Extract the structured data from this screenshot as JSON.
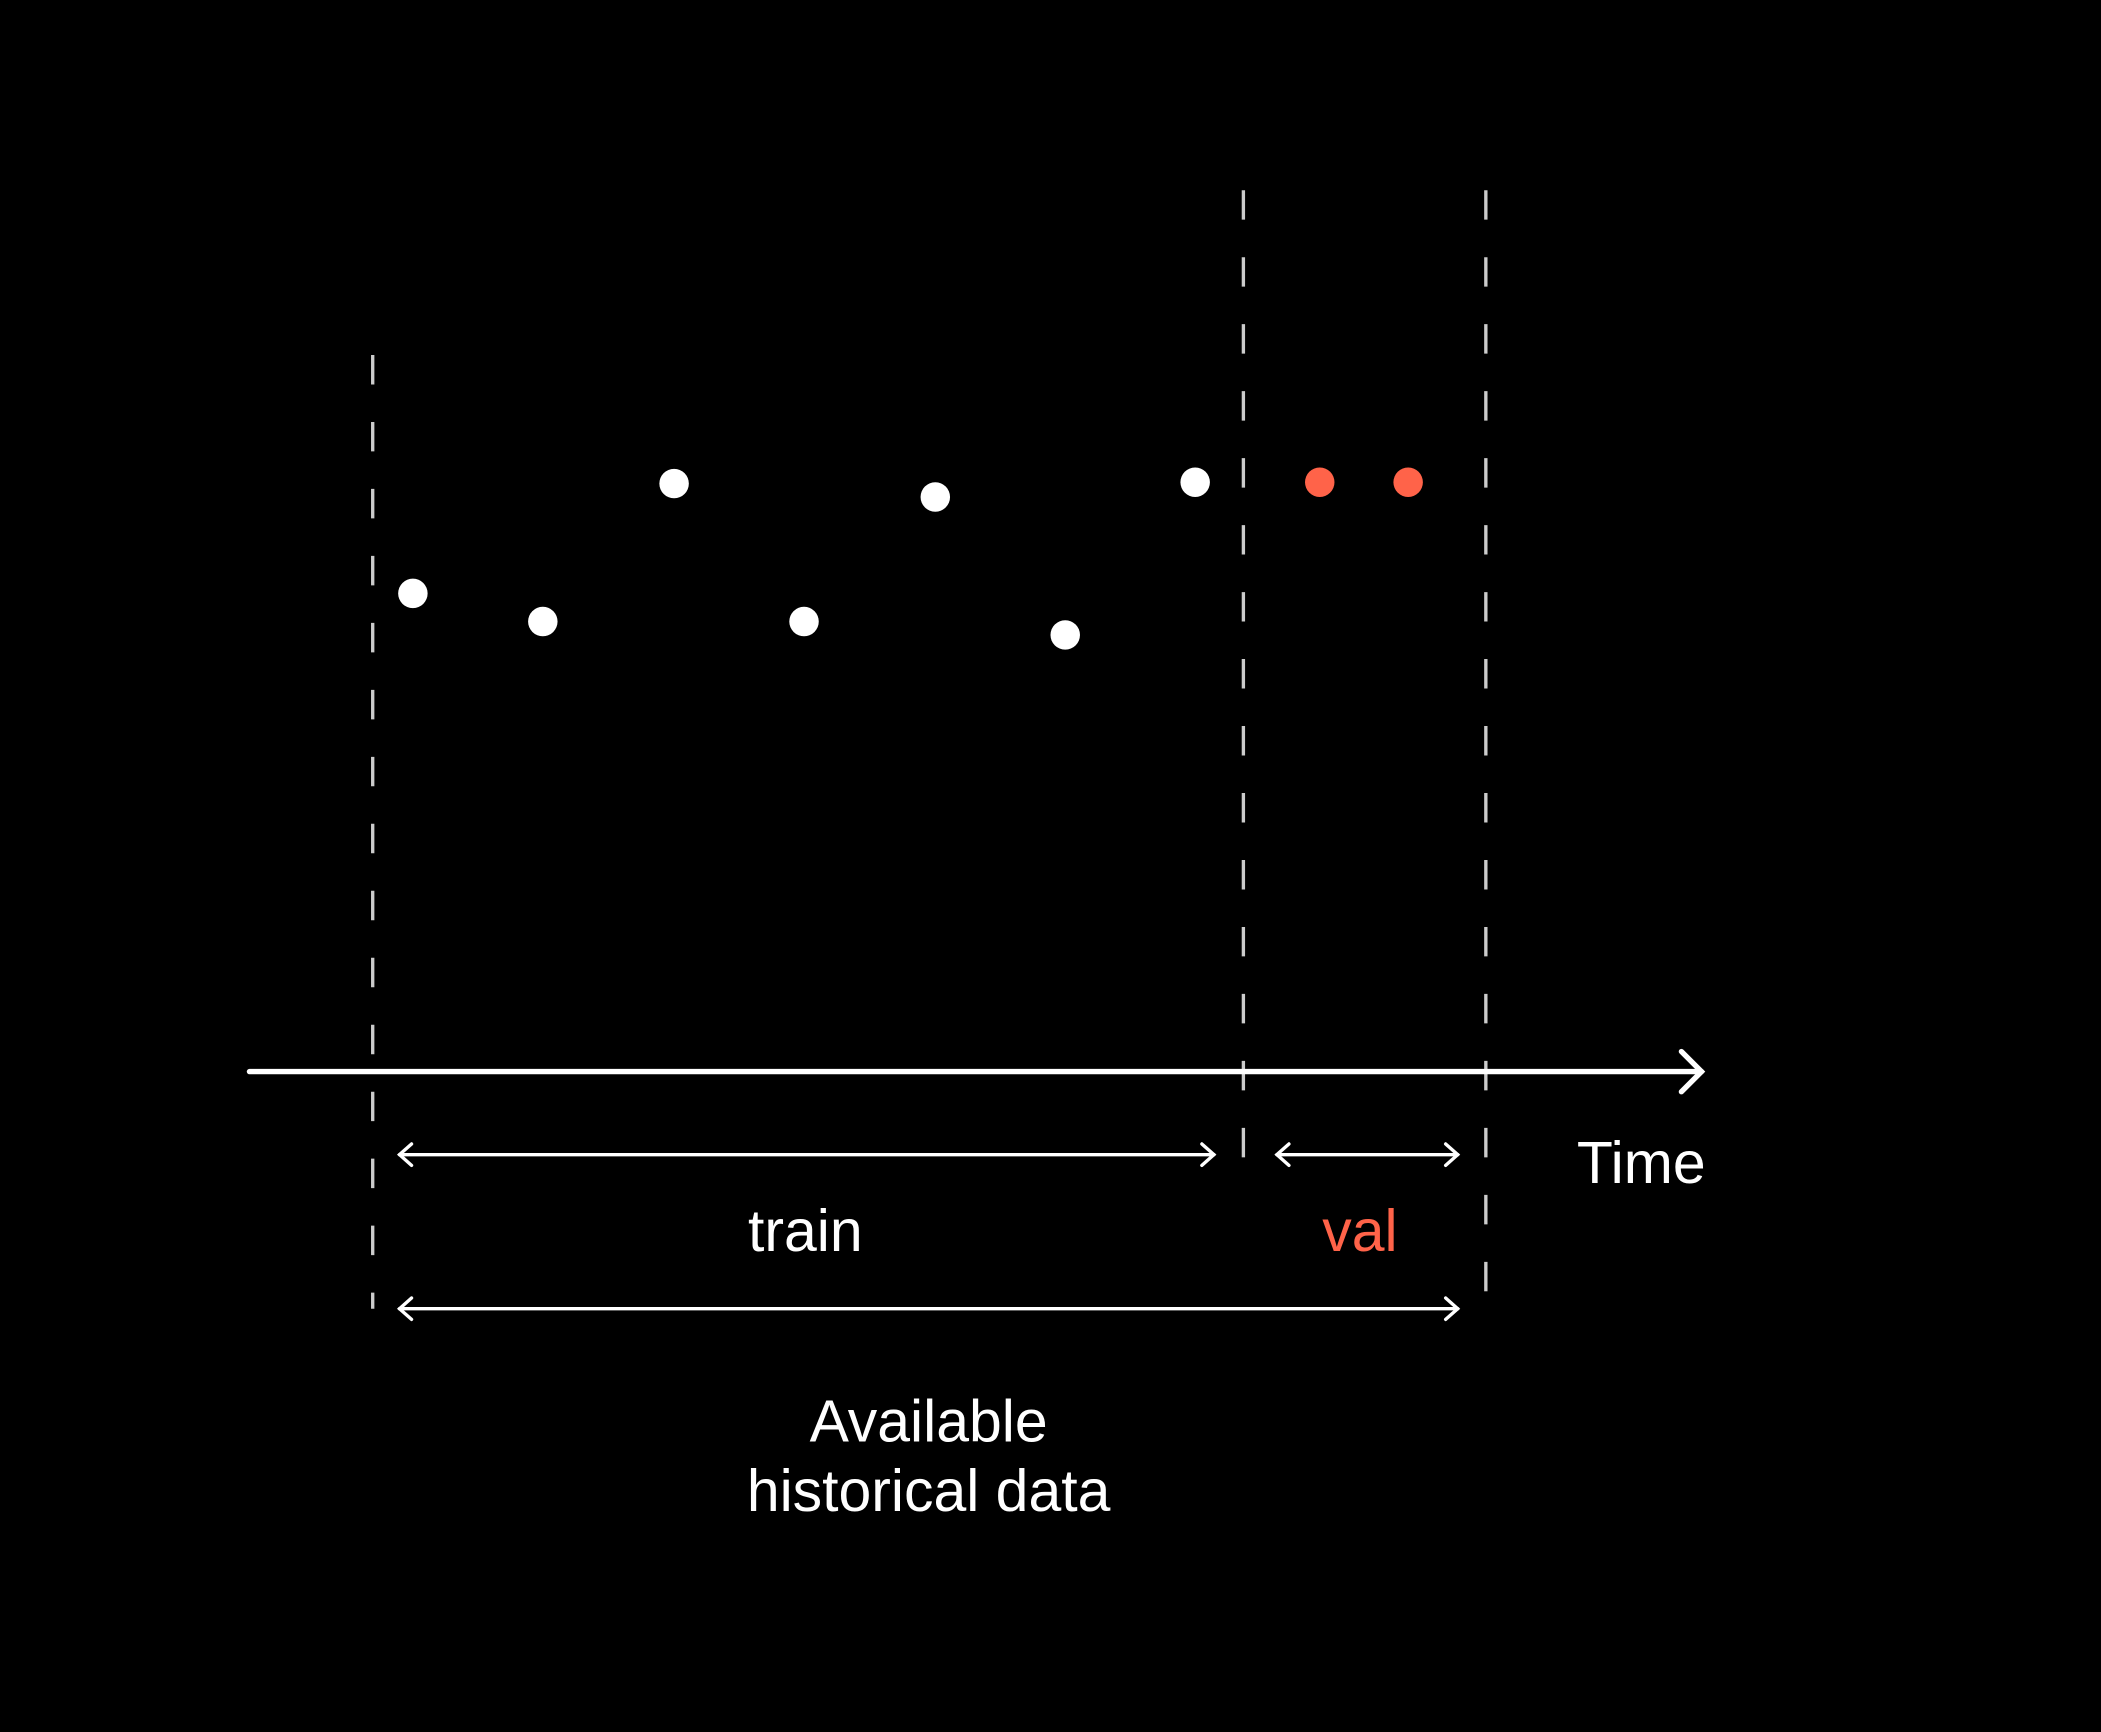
{
  "colors": {
    "background": "#000000",
    "foreground": "#ffffff",
    "accent": "#ff6349",
    "divider": "#cccccc"
  },
  "labels": {
    "axis": "Time",
    "train": "train",
    "val": "val",
    "available_line1": "Available",
    "available_line2": "historical data"
  },
  "chart_data": {
    "type": "scatter",
    "xlabel": "Time",
    "points": [
      {
        "t": 1,
        "y": 35.7,
        "split": "train"
      },
      {
        "t": 2,
        "y": 33.6,
        "split": "train"
      },
      {
        "t": 3,
        "y": 43.9,
        "split": "train"
      },
      {
        "t": 4,
        "y": 33.6,
        "split": "train"
      },
      {
        "t": 5,
        "y": 42.9,
        "split": "train"
      },
      {
        "t": 6,
        "y": 32.6,
        "split": "train"
      },
      {
        "t": 7,
        "y": 44.0,
        "split": "train"
      },
      {
        "t": 8,
        "y": 44.0,
        "split": "val"
      },
      {
        "t": 9,
        "y": 44.0,
        "split": "val"
      }
    ]
  }
}
